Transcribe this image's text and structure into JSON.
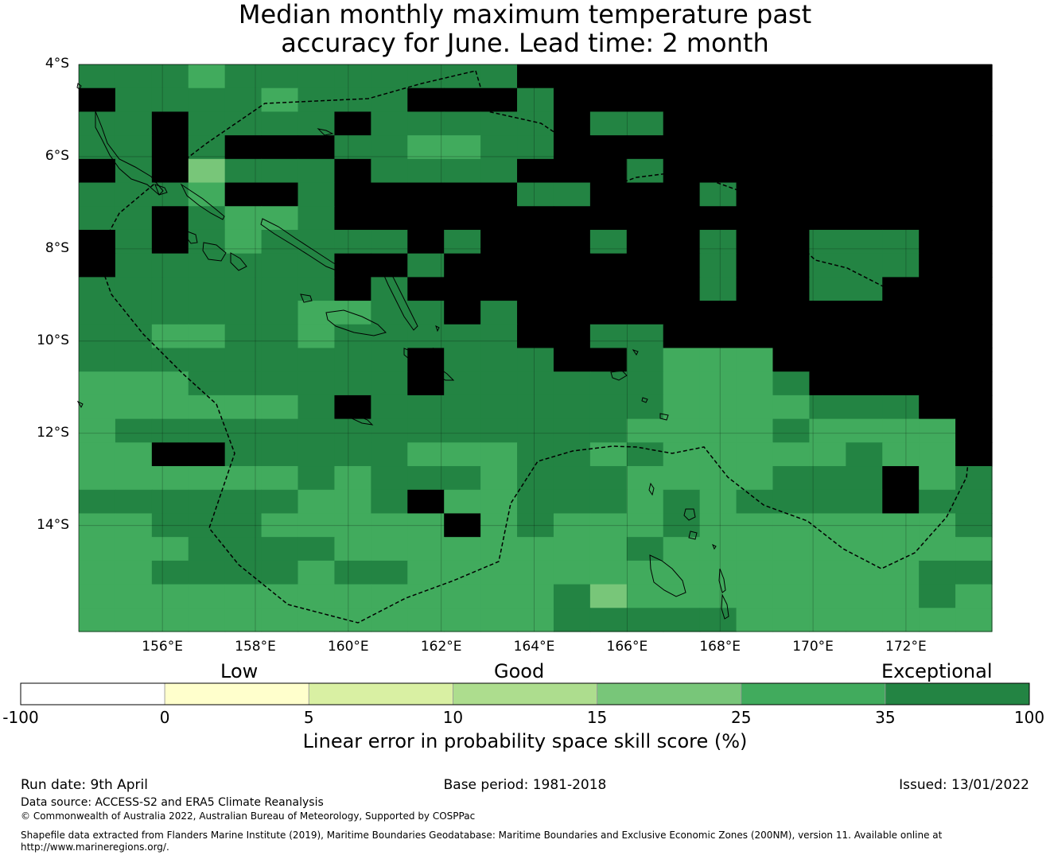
{
  "title": {
    "line1": "Median monthly maximum temperature past",
    "line2": "accuracy for June. Lead time: 2 month"
  },
  "map": {
    "lat_labels": [
      "4°S",
      "6°S",
      "8°S",
      "10°S",
      "12°S",
      "14°S"
    ],
    "lon_labels": [
      "156°E",
      "158°E",
      "160°E",
      "162°E",
      "164°E",
      "166°E",
      "168°E",
      "170°E",
      "172°E"
    ],
    "lat_range": [
      -16.3,
      -4.0
    ],
    "lon_range": [
      154.2,
      173.85
    ],
    "grid_rows": [
      "3332333333334444444444444",
      "4333323334443444444444444",
      "3343333433333433444444444",
      "3343444332233444444444444",
      "4341333433334443444444444",
      "3332443444443344434444444",
      "3343223444444444444444444",
      "4343233334344434434433344",
      "4333333443444444434433344",
      "3333333434444444434433444",
      "3333332233434444444444444",
      "3322332333334433444444444",
      "3333333334333443222444444",
      "2223333334333333222344444",
      "2222223433333333222233344",
      "2333333333333332222322224",
      "2244333332223323222223224",
      "2222223233323332222333423",
      "3333332234223332323333433",
      "2233322222423222322222223",
      "2223333222222223222222222",
      "2233332332222222222222233",
      "2222222222222312222222232",
      "2222222222222333332222222"
    ]
  },
  "colorbar": {
    "colors": [
      "#ffffff",
      "#ffffcc",
      "#d9f0a3",
      "#addd8e",
      "#78c679",
      "#41ab5d",
      "#238443"
    ],
    "boundaries": [
      "-100",
      "0",
      "5",
      "10",
      "15",
      "25",
      "35",
      "100"
    ],
    "category_labels": {
      "low": "Low",
      "good": "Good",
      "exceptional": "Exceptional"
    },
    "title": "Linear error in probability space skill score (%)"
  },
  "footer": {
    "run_date": "Run date: 9th April",
    "base_period": "Base period: 1981-2018",
    "issued": "Issued: 13/01/2022",
    "data_source": "Data source: ACCESS-S2 and ERA5 Climate Reanalysis",
    "copyright": "© Commonwealth of Australia 2022, Australian Bureau of Meteorology, Supported by COSPPac",
    "shapefile_line1": "Shapefile data extracted from Flanders Marine Institute (2019), Maritime Boundaries Geodatabase: Maritime Boundaries and Exclusive Economic Zones (200NM), version 11. Available online at",
    "shapefile_line2": "http://www.marineregions.org/."
  }
}
